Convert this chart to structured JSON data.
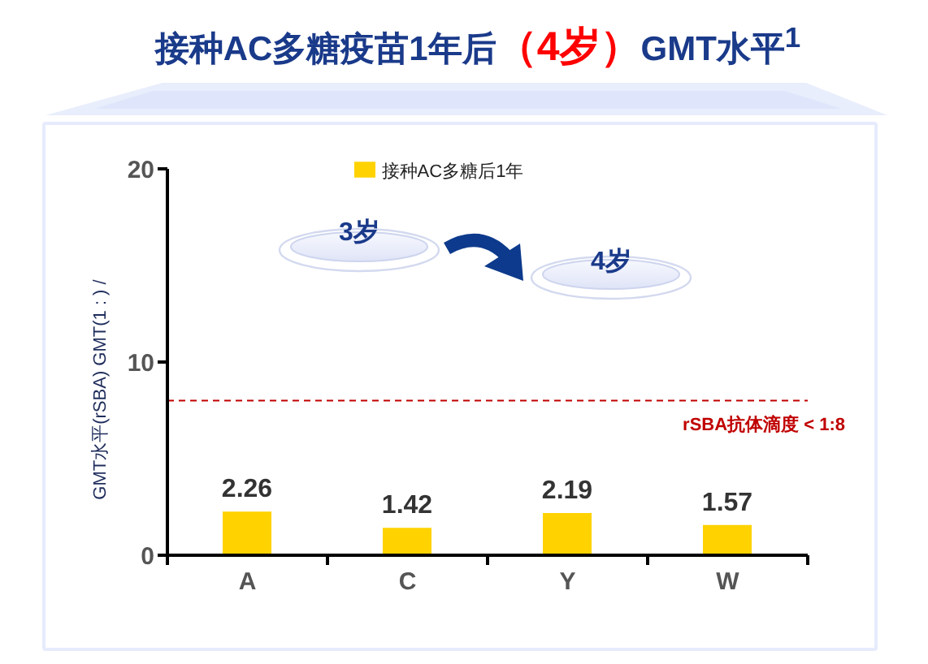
{
  "chart_data": {
    "type": "bar",
    "title": "接种AC多糖疫苗1年后（4岁）GMT水平$^{1}$",
    "ylabel": "GMT水平(rSBA) GMT(1 : ) /",
    "categories": [
      "A",
      "C",
      "Y",
      "W"
    ],
    "series": [
      {
        "name": "接种AC多糖后1年",
        "color": "#ffd200",
        "values": [
          2.26,
          1.42,
          2.19,
          1.57
        ]
      }
    ],
    "ylim": [
      0,
      20
    ],
    "yticks": [
      0,
      10,
      20
    ],
    "data_labels": true,
    "legend": "top",
    "ref_lines": [
      {
        "axis": "y",
        "value": 8,
        "label": "rSBA抗体滴度 < 1:8",
        "color": "#c00000",
        "line_style": "dashed"
      }
    ],
    "annotations": [
      "3岁",
      "4岁"
    ]
  }
}
